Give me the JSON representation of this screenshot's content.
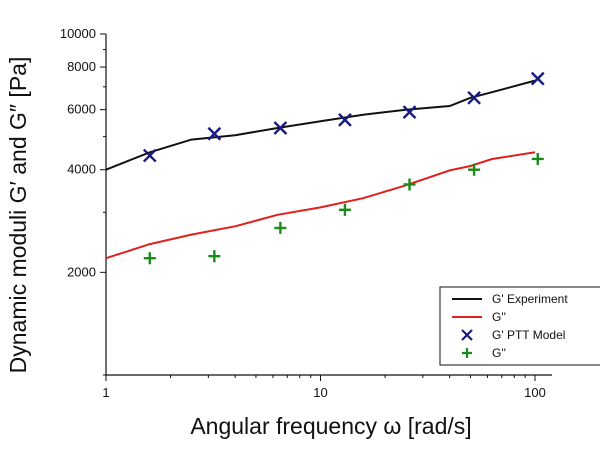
{
  "chart_data": {
    "type": "line",
    "xlabel": "Angular frequency ω [rad/s]",
    "ylabel": "Dynamic moduli G′ and G″ [Pa]",
    "xscale": "log",
    "yscale": "log",
    "xlim": [
      1,
      120
    ],
    "ylim": [
      1000,
      10000
    ],
    "grid": false,
    "legend_placement": "bottom-right",
    "x_ticks": [
      {
        "value": 1,
        "label": "1"
      },
      {
        "value": 10,
        "label": "10"
      },
      {
        "value": 100,
        "label": "100"
      }
    ],
    "y_ticks": [
      {
        "value": 2000,
        "label": "2000"
      },
      {
        "value": 4000,
        "label": "4000"
      },
      {
        "value": 6000,
        "label": "6000"
      },
      {
        "value": 8000,
        "label": "8000"
      },
      {
        "value": 10000,
        "label": "10000"
      }
    ],
    "series": [
      {
        "name": "G' Experiment",
        "style": "line",
        "color": "#111111",
        "x": [
          1,
          1.6,
          2.5,
          4,
          6.3,
          10,
          15.8,
          25,
          40,
          50,
          63,
          100
        ],
        "y": [
          4000,
          4500,
          4900,
          5050,
          5300,
          5550,
          5800,
          6000,
          6150,
          6500,
          6750,
          7300
        ]
      },
      {
        "name": "G''",
        "style": "line",
        "color": "#e0201b",
        "x": [
          1,
          1.6,
          2.5,
          4,
          6.3,
          10,
          15.8,
          25,
          40,
          50,
          63,
          100
        ],
        "y": [
          2200,
          2420,
          2580,
          2730,
          2950,
          3100,
          3300,
          3600,
          3980,
          4100,
          4300,
          4500
        ]
      },
      {
        "name": "G' PTT Model",
        "style": "marker",
        "marker": "x",
        "color": "#1a1a80",
        "x": [
          1.6,
          3.2,
          6.5,
          13,
          26,
          52,
          103
        ],
        "y": [
          4400,
          5100,
          5300,
          5600,
          5900,
          6500,
          7400
        ]
      },
      {
        "name": "G''",
        "style": "marker",
        "marker": "+",
        "color": "#1a8a1a",
        "x": [
          1.6,
          3.2,
          6.5,
          13,
          26,
          52,
          103
        ],
        "y": [
          2200,
          2230,
          2700,
          3050,
          3620,
          4000,
          4300
        ]
      }
    ]
  }
}
